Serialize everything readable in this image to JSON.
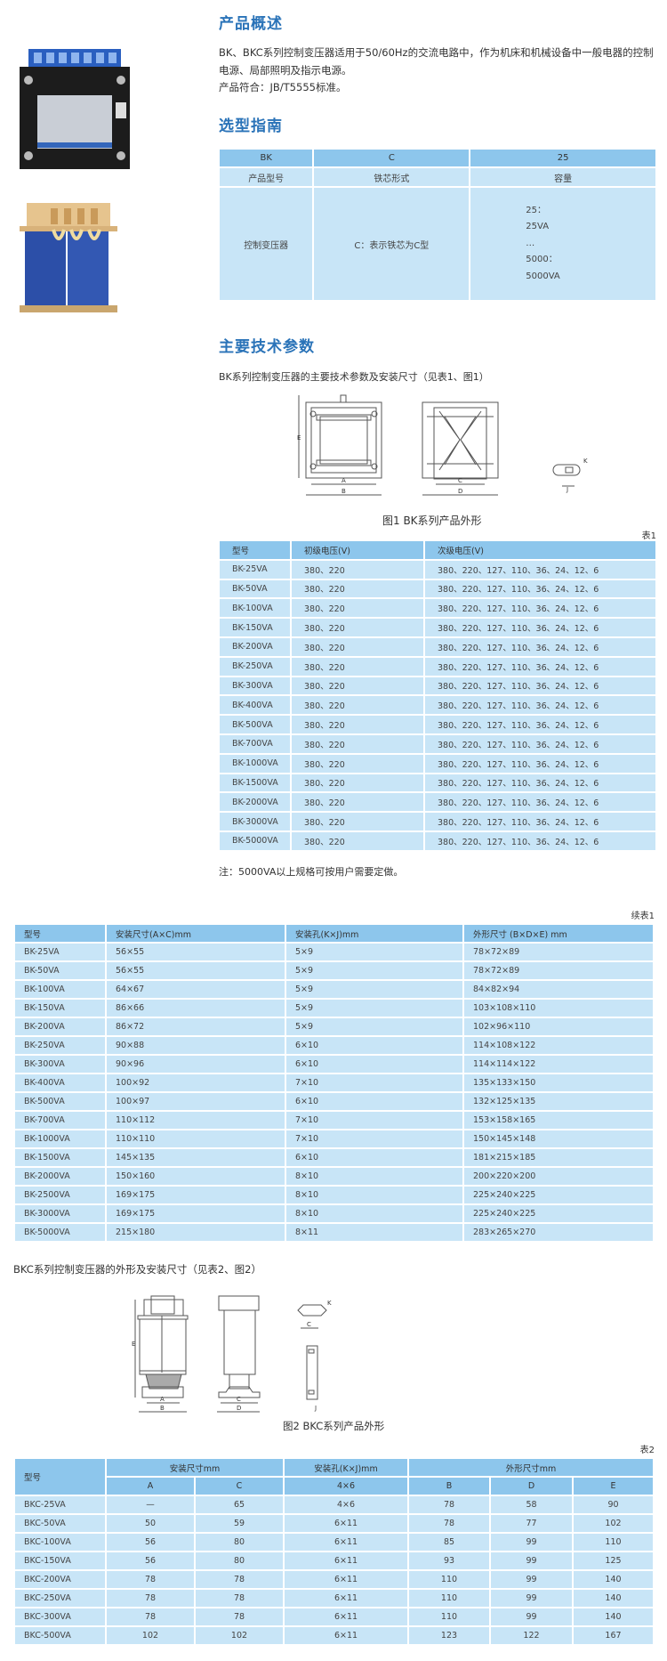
{
  "overview": {
    "title": "产品概述",
    "text": "BK、BKC系列控制变压器适用于50/60Hz的交流电路中，作为机床和机械设备中一般电器的控制电源、局部照明及指示电源。",
    "standard": "产品符合：JB/T5555标准。"
  },
  "selection": {
    "title": "选型指南",
    "codes": [
      "BK",
      "C",
      "25"
    ],
    "labels": [
      "产品型号",
      "铁芯形式",
      "容量"
    ],
    "desc": [
      "控制变压器",
      "C：表示铁芯为C型"
    ],
    "capacity": [
      "25：",
      "25VA",
      "…",
      "5000：",
      "5000VA"
    ]
  },
  "specs": {
    "title": "主要技术参数",
    "caption": "BK系列控制变压器的主要技术参数及安装尺寸（见表1、图1）",
    "figure_caption": "图1  BK系列产品外形",
    "figure_labels": {
      "A": "A",
      "B": "B",
      "C": "C",
      "D": "D",
      "E": "E",
      "K": "K",
      "J": "J"
    }
  },
  "table1": {
    "label": "表1",
    "headers": [
      "型号",
      "初级电压(V)",
      "次级电压(V)"
    ],
    "rows": [
      [
        "BK-25VA",
        "380、220",
        "380、220、127、110、36、24、12、6"
      ],
      [
        "BK-50VA",
        "380、220",
        "380、220、127、110、36、24、12、6"
      ],
      [
        "BK-100VA",
        "380、220",
        "380、220、127、110、36、24、12、6"
      ],
      [
        "BK-150VA",
        "380、220",
        "380、220、127、110、36、24、12、6"
      ],
      [
        "BK-200VA",
        "380、220",
        "380、220、127、110、36、24、12、6"
      ],
      [
        "BK-250VA",
        "380、220",
        "380、220、127、110、36、24、12、6"
      ],
      [
        "BK-300VA",
        "380、220",
        "380、220、127、110、36、24、12、6"
      ],
      [
        "BK-400VA",
        "380、220",
        "380、220、127、110、36、24、12、6"
      ],
      [
        "BK-500VA",
        "380、220",
        "380、220、127、110、36、24、12、6"
      ],
      [
        "BK-700VA",
        "380、220",
        "380、220、127、110、36、24、12、6"
      ],
      [
        "BK-1000VA",
        "380、220",
        "380、220、127、110、36、24、12、6"
      ],
      [
        "BK-1500VA",
        "380、220",
        "380、220、127、110、36、24、12、6"
      ],
      [
        "BK-2000VA",
        "380、220",
        "380、220、127、110、36、24、12、6"
      ],
      [
        "BK-3000VA",
        "380、220",
        "380、220、127、110、36、24、12、6"
      ],
      [
        "BK-5000VA",
        "380、220",
        "380、220、127、110、36、24、12、6"
      ]
    ],
    "note": "注：5000VA以上规格可按用户需要定做。"
  },
  "table1b": {
    "label": "续表1",
    "headers": [
      "型号",
      "安装尺寸(A×C)mm",
      "安装孔(K×J)mm",
      "外形尺寸 (B×D×E) mm"
    ],
    "rows": [
      [
        "BK-25VA",
        "56×55",
        "5×9",
        "78×72×89"
      ],
      [
        "BK-50VA",
        "56×55",
        "5×9",
        "78×72×89"
      ],
      [
        "BK-100VA",
        "64×67",
        "5×9",
        "84×82×94"
      ],
      [
        "BK-150VA",
        "86×66",
        "5×9",
        "103×108×110"
      ],
      [
        "BK-200VA",
        "86×72",
        "5×9",
        "102×96×110"
      ],
      [
        "BK-250VA",
        "90×88",
        "6×10",
        "114×108×122"
      ],
      [
        "BK-300VA",
        "90×96",
        "6×10",
        "114×114×122"
      ],
      [
        "BK-400VA",
        "100×92",
        "7×10",
        "135×133×150"
      ],
      [
        "BK-500VA",
        "100×97",
        "6×10",
        "132×125×135"
      ],
      [
        "BK-700VA",
        "110×112",
        "7×10",
        "153×158×165"
      ],
      [
        "BK-1000VA",
        "110×110",
        "7×10",
        "150×145×148"
      ],
      [
        "BK-1500VA",
        "145×135",
        "6×10",
        "181×215×185"
      ],
      [
        "BK-2000VA",
        "150×160",
        "8×10",
        "200×220×200"
      ],
      [
        "BK-2500VA",
        "169×175",
        "8×10",
        "225×240×225"
      ],
      [
        "BK-3000VA",
        "169×175",
        "8×10",
        "225×240×225"
      ],
      [
        "BK-5000VA",
        "215×180",
        "8×11",
        "283×265×270"
      ]
    ]
  },
  "bkc": {
    "caption": "BKC系列控制变压器的外形及安装尺寸（见表2、图2）",
    "figure_caption": "图2  BKC系列产品外形"
  },
  "table2": {
    "label": "表2",
    "group_headers": [
      "型号",
      "安装尺寸mm",
      "安装孔(K×J)mm",
      "外形尺寸mm"
    ],
    "sub_headers": [
      "A",
      "C",
      "4×6",
      "B",
      "D",
      "E"
    ],
    "rows": [
      [
        "BKC-25VA",
        "—",
        "65",
        "4×6",
        "78",
        "58",
        "90"
      ],
      [
        "BKC-50VA",
        "50",
        "59",
        "6×11",
        "78",
        "77",
        "102"
      ],
      [
        "BKC-100VA",
        "56",
        "80",
        "6×11",
        "85",
        "99",
        "110"
      ],
      [
        "BKC-150VA",
        "56",
        "80",
        "6×11",
        "93",
        "99",
        "125"
      ],
      [
        "BKC-200VA",
        "78",
        "78",
        "6×11",
        "110",
        "99",
        "140"
      ],
      [
        "BKC-250VA",
        "78",
        "78",
        "6×11",
        "110",
        "99",
        "140"
      ],
      [
        "BKC-300VA",
        "78",
        "78",
        "6×11",
        "110",
        "99",
        "140"
      ],
      [
        "BKC-500VA",
        "102",
        "102",
        "6×11",
        "123",
        "122",
        "167"
      ]
    ]
  },
  "colors": {
    "heading": "#2a73b8",
    "table_header": "#8dc6ec",
    "table_row": "#c8e5f7"
  }
}
